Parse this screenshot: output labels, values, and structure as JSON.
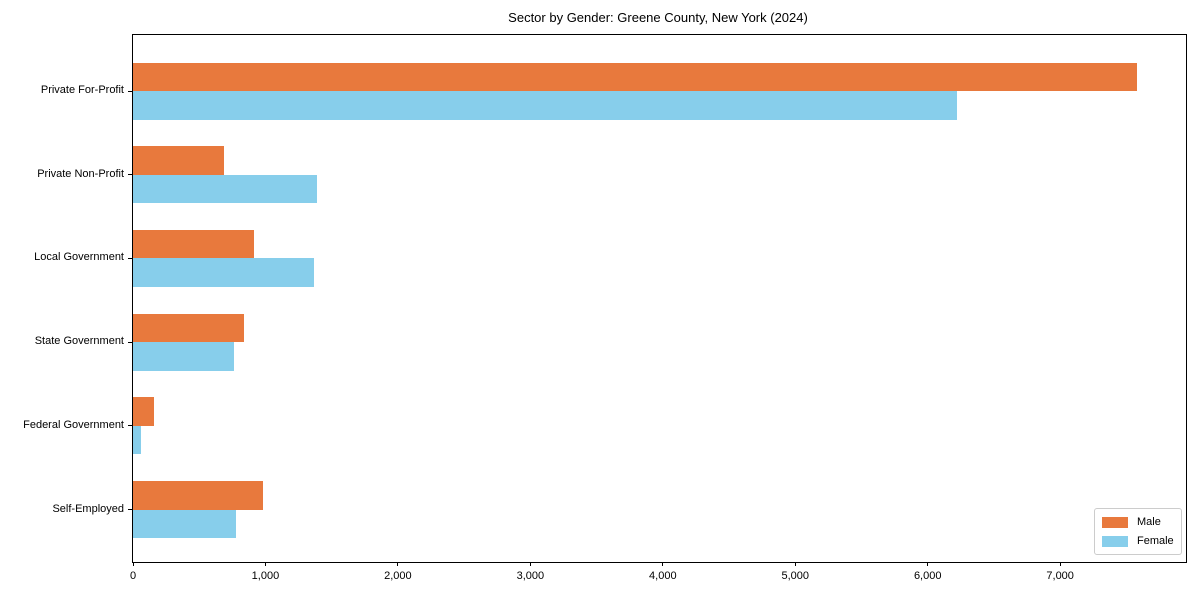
{
  "chart_data": {
    "type": "bar",
    "orientation": "horizontal",
    "title": "Sector by Gender: Greene County, New York (2024)",
    "categories": [
      "Private For-Profit",
      "Private Non-Profit",
      "Local Government",
      "State Government",
      "Federal Government",
      "Self-Employed"
    ],
    "series": [
      {
        "name": "Male",
        "color": "#e8793d",
        "values": [
          7580,
          690,
          915,
          835,
          160,
          985
        ]
      },
      {
        "name": "Female",
        "color": "#87ceeb",
        "values": [
          6220,
          1390,
          1370,
          760,
          60,
          780
        ]
      }
    ],
    "xlim": [
      0,
      7950
    ],
    "xticks": [
      0,
      1000,
      2000,
      3000,
      4000,
      5000,
      6000,
      7000
    ],
    "xtick_labels": [
      "0",
      "1,000",
      "2,000",
      "3,000",
      "4,000",
      "5,000",
      "6,000",
      "7,000"
    ],
    "grid": false,
    "legend": {
      "position": "lower right",
      "entries": [
        "Male",
        "Female"
      ]
    }
  }
}
